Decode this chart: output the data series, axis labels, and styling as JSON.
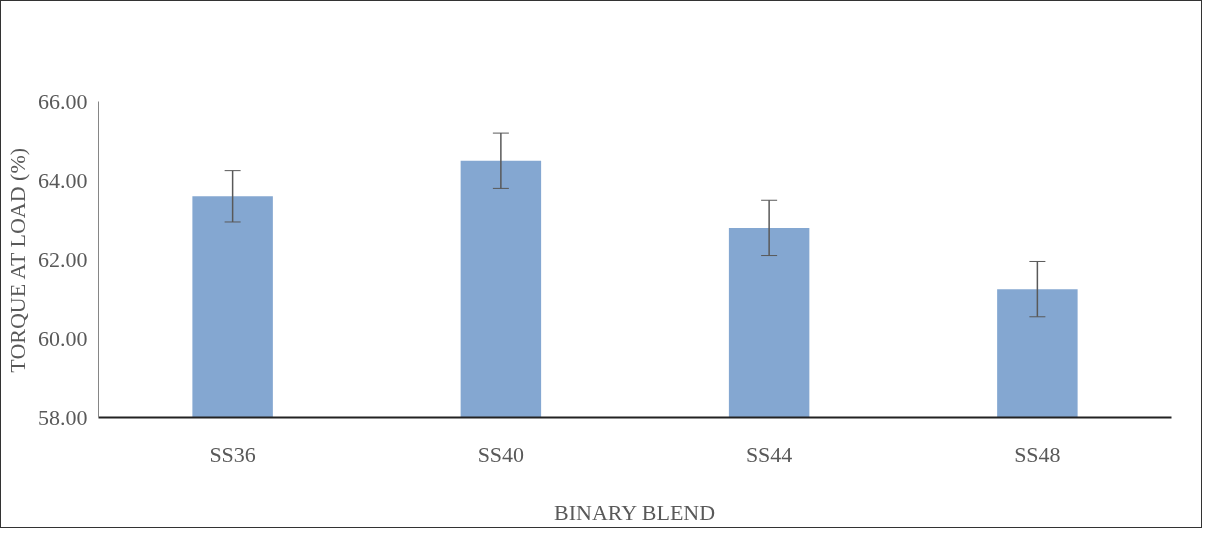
{
  "chart_data": {
    "type": "bar",
    "xlabel": "BINARY BLEND",
    "ylabel": "TORQUE AT LOAD (%)",
    "categories": [
      "SS36",
      "SS40",
      "SS44",
      "SS48"
    ],
    "values": [
      63.6,
      64.5,
      62.8,
      61.25
    ],
    "errors": [
      0.65,
      0.7,
      0.7,
      0.7
    ],
    "color": "#84a7d1",
    "ylim": [
      58,
      66
    ],
    "yticks": [
      {
        "value": 58,
        "label": "58.00"
      },
      {
        "value": 60,
        "label": "60.00"
      },
      {
        "value": 62,
        "label": "62.00"
      },
      {
        "value": 64,
        "label": "64.00"
      },
      {
        "value": 66,
        "label": "66.00"
      }
    ],
    "grid": false
  }
}
